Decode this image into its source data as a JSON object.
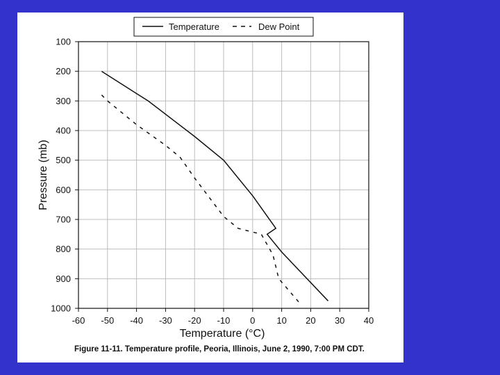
{
  "chart_data": {
    "type": "line",
    "title": "",
    "xlabel": "Temperature (°C)",
    "ylabel": "Pressure (mb)",
    "xlim": [
      -60,
      40
    ],
    "ylim": [
      100,
      1000
    ],
    "y_inverted": true,
    "xticks": [
      -60,
      -50,
      -40,
      -30,
      -20,
      -10,
      0,
      10,
      20,
      30,
      40
    ],
    "yticks": [
      100,
      200,
      300,
      400,
      500,
      600,
      700,
      800,
      900,
      1000
    ],
    "grid": true,
    "legend_position": "top-center",
    "series": [
      {
        "name": "Temperature",
        "style": "solid",
        "color": "#111111",
        "points": [
          {
            "x": -52,
            "y": 200
          },
          {
            "x": -40,
            "y": 275
          },
          {
            "x": -36,
            "y": 300
          },
          {
            "x": -20,
            "y": 420
          },
          {
            "x": -10,
            "y": 500
          },
          {
            "x": 0,
            "y": 620
          },
          {
            "x": 8,
            "y": 730
          },
          {
            "x": 5,
            "y": 750
          },
          {
            "x": 10,
            "y": 810
          },
          {
            "x": 26,
            "y": 975
          }
        ]
      },
      {
        "name": "Dew Point",
        "style": "dashed",
        "color": "#111111",
        "points": [
          {
            "x": -52,
            "y": 280
          },
          {
            "x": -50,
            "y": 300
          },
          {
            "x": -40,
            "y": 380
          },
          {
            "x": -30,
            "y": 450
          },
          {
            "x": -25,
            "y": 490
          },
          {
            "x": -20,
            "y": 560
          },
          {
            "x": -10,
            "y": 690
          },
          {
            "x": -5,
            "y": 730
          },
          {
            "x": 3,
            "y": 750
          },
          {
            "x": 7,
            "y": 820
          },
          {
            "x": 9,
            "y": 900
          },
          {
            "x": 16,
            "y": 980
          }
        ]
      }
    ],
    "annotations": []
  },
  "legend": {
    "temperature_label": "Temperature",
    "dewpoint_label": "Dew Point"
  },
  "caption": {
    "lead": "Figure 11-11.",
    "text": "Temperature profile, Peoria, Illinois, June 2, 1990, 7:00 PM CDT."
  },
  "colors": {
    "background": "#3333cc",
    "paper": "#ffffff",
    "ink": "#111111",
    "grid": "#bdbdbd"
  }
}
